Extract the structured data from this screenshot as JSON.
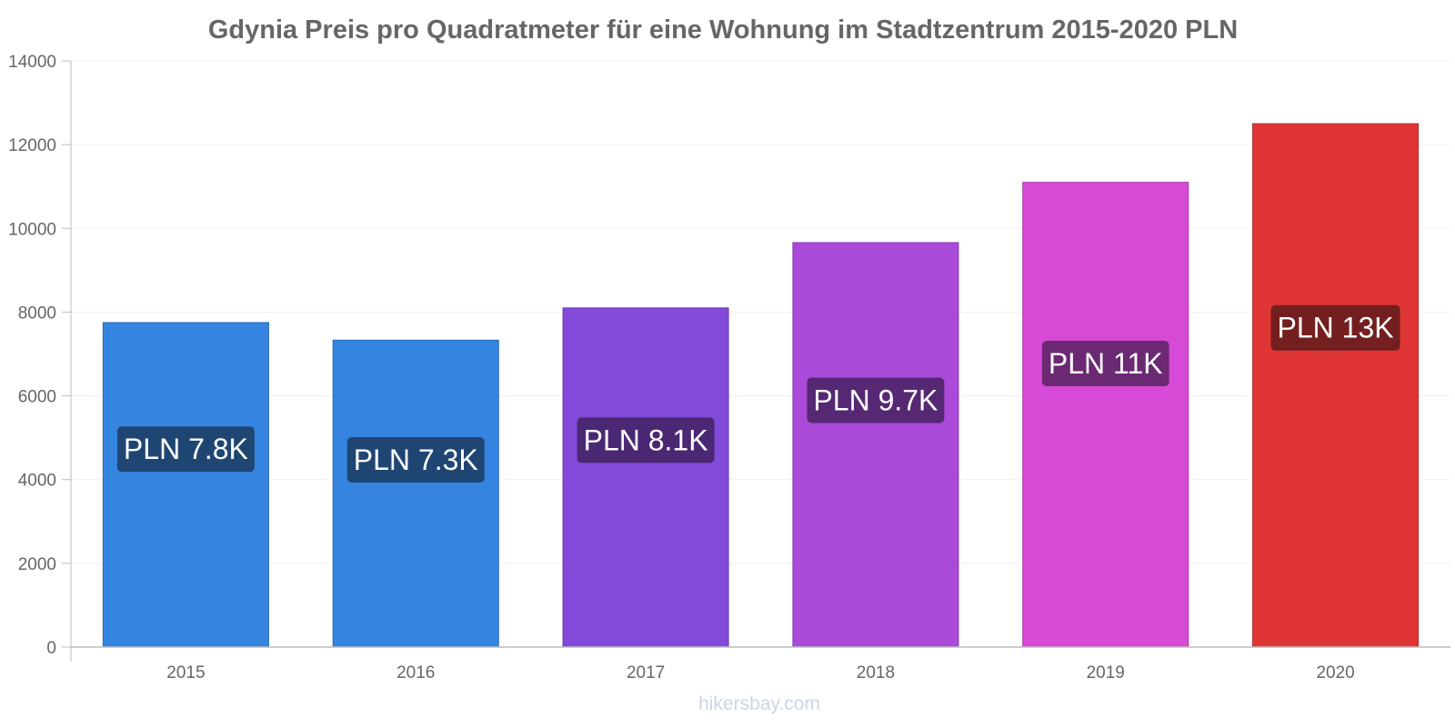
{
  "chart_data": {
    "type": "bar",
    "title": "Gdynia Preis pro Quadratmeter für eine Wohnung im Stadtzentrum 2015-2020 PLN",
    "xlabel": "",
    "ylabel": "",
    "ylim": [
      0,
      14000
    ],
    "yticks": [
      0,
      2000,
      4000,
      6000,
      8000,
      10000,
      12000,
      14000
    ],
    "categories": [
      "2015",
      "2016",
      "2017",
      "2018",
      "2019",
      "2020"
    ],
    "values": [
      7750,
      7330,
      8100,
      9660,
      11100,
      12500
    ],
    "data_labels": [
      "PLN 7.8K",
      "PLN 7.3K",
      "PLN 8.1K",
      "PLN 9.7K",
      "PLN 11K",
      "PLN 13K"
    ],
    "bar_colors": [
      "#3584e0",
      "#3584e0",
      "#834ad9",
      "#a94ad9",
      "#d64ad5",
      "#e03535"
    ],
    "bar_edge_colors": [
      "#2a6ab3",
      "#2a6ab3",
      "#6a3bae",
      "#873bae",
      "#ab3baa",
      "#b32a2a"
    ],
    "label_bg_colors": [
      "#1f4673",
      "#1f4673",
      "#4a2873",
      "#562873",
      "#6b2873",
      "#731f1f"
    ],
    "grid": true
  },
  "footer": {
    "watermark": "hikersbay.com"
  }
}
